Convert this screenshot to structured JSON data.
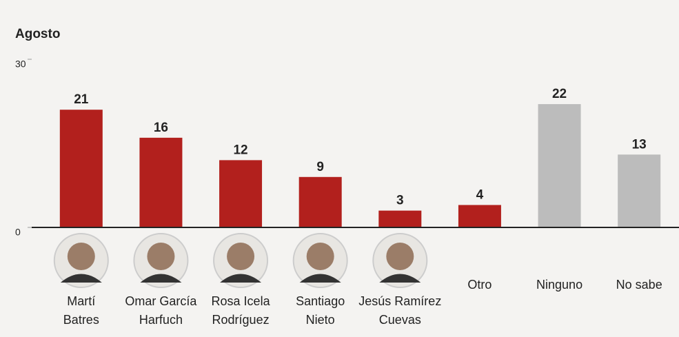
{
  "chart_data": {
    "type": "bar",
    "title": "Agosto",
    "categories": [
      [
        "Martí",
        "Batres"
      ],
      [
        "Omar García",
        "Harfuch"
      ],
      [
        "Rosa Icela",
        "Rodríguez"
      ],
      [
        "Santiago",
        "Nieto"
      ],
      [
        "Jesús Ramírez",
        "Cuevas"
      ],
      [
        "Otro"
      ],
      [
        "Ninguno"
      ],
      [
        "No sabe"
      ]
    ],
    "values": [
      21,
      16,
      12,
      9,
      3,
      4,
      22,
      13
    ],
    "colors": [
      "#b2201d",
      "#b2201d",
      "#b2201d",
      "#b2201d",
      "#b2201d",
      "#b2201d",
      "#bcbcbc",
      "#bcbcbc"
    ],
    "ylim": [
      0,
      30
    ],
    "yticks": [
      0,
      30
    ]
  }
}
